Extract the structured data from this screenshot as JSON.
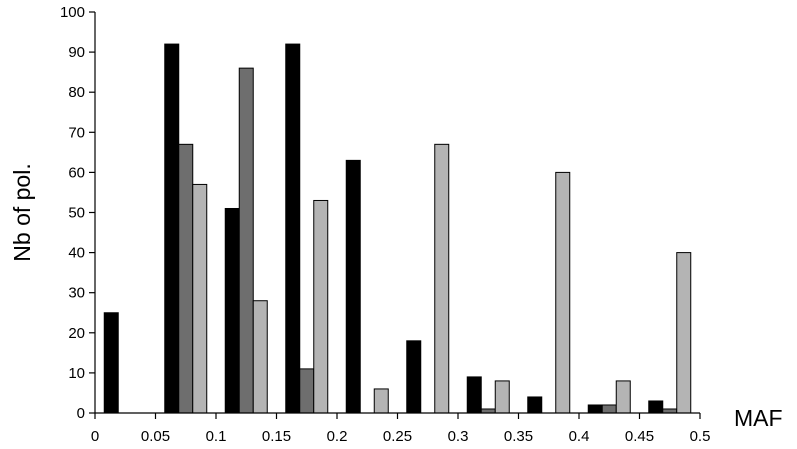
{
  "chart_data": {
    "type": "bar",
    "xlabel": "MAF",
    "ylabel": "Nb of pol.",
    "ylim": [
      0,
      100
    ],
    "yticks": [
      0,
      10,
      20,
      30,
      40,
      50,
      60,
      70,
      80,
      90,
      100
    ],
    "xlim": [
      0,
      0.5
    ],
    "xticks": [
      "0",
      "0.05",
      "0.1",
      "0.15",
      "0.2",
      "0.25",
      "0.3",
      "0.35",
      "0.4",
      "0.45",
      "0.5"
    ],
    "bin_width": 0.05,
    "grid": false,
    "legend": false,
    "series": [
      {
        "color": "#000000",
        "values": [
          25,
          92,
          51,
          92,
          63,
          18,
          9,
          4,
          2,
          3
        ]
      },
      {
        "color": "#6e6e6e",
        "values": [
          0,
          67,
          86,
          11,
          0,
          0,
          1,
          0,
          2,
          1
        ]
      },
      {
        "color": "#b4b4b4",
        "values": [
          0,
          57,
          28,
          53,
          6,
          67,
          8,
          60,
          8,
          40
        ]
      }
    ]
  }
}
